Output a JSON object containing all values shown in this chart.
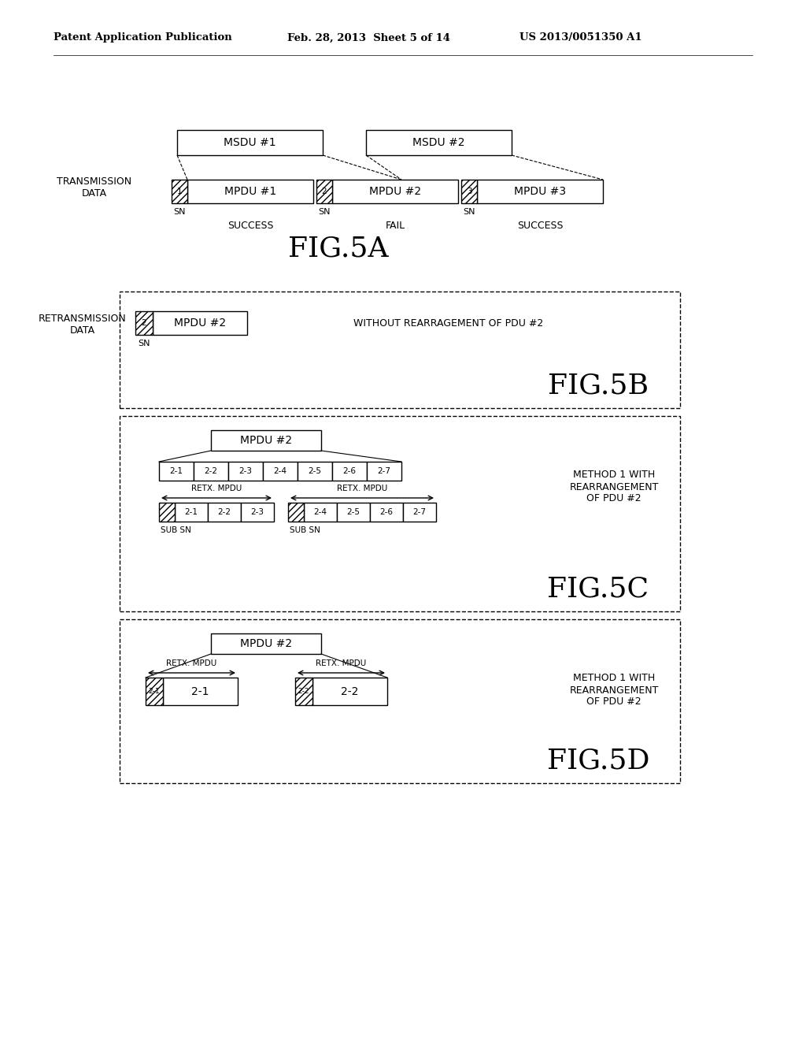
{
  "bg_color": "#ffffff",
  "header_text": "Patent Application Publication",
  "header_date": "Feb. 28, 2013  Sheet 5 of 14",
  "header_patent": "US 2013/0051350 A1",
  "fig5a_label": "FIG.5A",
  "fig5b_label": "FIG.5B",
  "fig5c_label": "FIG.5C",
  "fig5d_label": "FIG.5D"
}
